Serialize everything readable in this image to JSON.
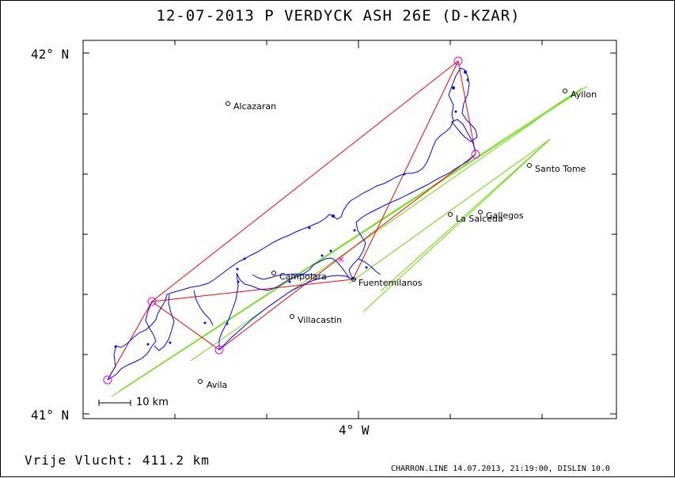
{
  "title": "12-07-2013   P VERDYCK   ASH 26E (D-KZAR)",
  "axes": {
    "lat_top": "42° N",
    "lat_bottom": "41° N",
    "lon_center": "4° W"
  },
  "scale_bar": "10 km",
  "distance": "Vrije Vlucht:  411.2 km",
  "credit": "CHARRON.LINE 14.07.2013, 21:19:00, DISLIN 10.0",
  "colors": {
    "track": "#0000ff",
    "task": "#ff0000",
    "sectors": "#66dd00",
    "turnpoints": "#ee00ee",
    "frame": "#000000"
  },
  "towns": [
    {
      "name": "Alcazaran"
    },
    {
      "name": "Ayllon"
    },
    {
      "name": "Santo Tome"
    },
    {
      "name": "Gallegos"
    },
    {
      "name": "La Salceda"
    },
    {
      "name": "Campolara"
    },
    {
      "name": "Fuentemilanos"
    },
    {
      "name": "Villacastin"
    },
    {
      "name": "Avila"
    }
  ]
}
